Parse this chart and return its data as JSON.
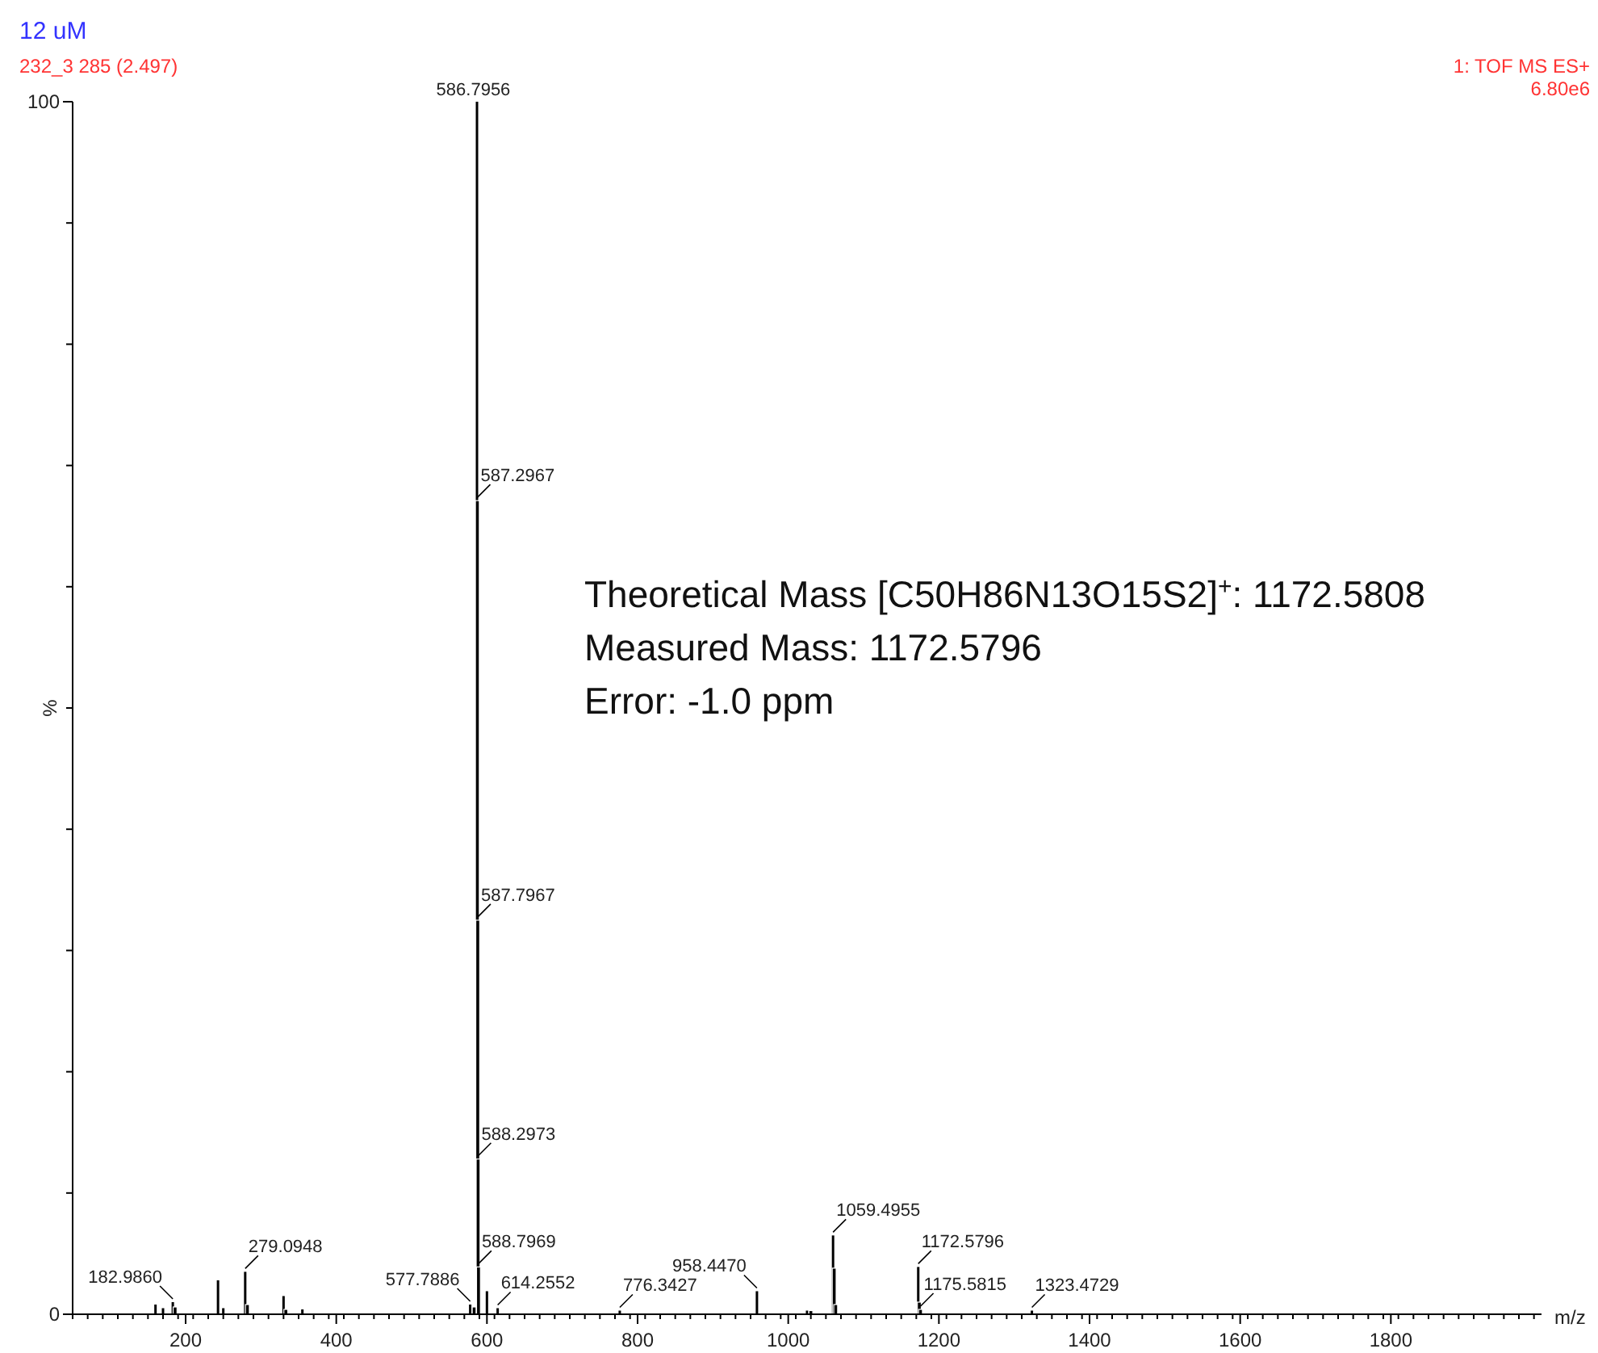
{
  "chart_data": {
    "type": "bar",
    "title": "12 uM",
    "subtitle": "232_3 285 (2.497)",
    "xlabel": "m/z",
    "ylabel": "%",
    "x": [
      160,
      170,
      182.986,
      186,
      243,
      250,
      279.0948,
      282,
      330,
      333,
      355,
      577.7886,
      583,
      586.7956,
      587.2967,
      587.7967,
      588.2973,
      588.7969,
      600,
      614.2552,
      776.3427,
      958.447,
      1025,
      1030,
      1059.4955,
      1061,
      1063,
      1172.5796,
      1174,
      1175.5815,
      1323.4729
    ],
    "values": [
      0.8,
      0.5,
      1.0,
      0.6,
      2.8,
      0.5,
      3.5,
      0.8,
      1.5,
      0.4,
      0.4,
      0.8,
      0.6,
      100,
      67.1,
      32.5,
      12.8,
      3.9,
      1.9,
      0.5,
      0.3,
      1.9,
      0.3,
      0.3,
      6.5,
      3.8,
      0.8,
      3.9,
      1.0,
      0.4,
      0.3
    ],
    "color": "#000000",
    "xlim": [
      50,
      2000
    ],
    "xticks": [
      200,
      400,
      600,
      800,
      1000,
      1200,
      1400,
      1600,
      1800
    ],
    "ylim": [
      0,
      100
    ],
    "yticks": [
      0,
      {
        "value": 10,
        "label": null
      },
      {
        "value": 20,
        "label": null
      },
      {
        "value": 30,
        "label": null
      },
      {
        "value": 40,
        "label": null
      },
      {
        "value": 50,
        "label": null
      },
      {
        "value": 60,
        "label": null
      },
      {
        "value": 70,
        "label": null
      },
      {
        "value": 80,
        "label": null
      },
      {
        "value": 90,
        "label": null
      },
      100
    ],
    "annotations": [
      "1: TOF MS ES+",
      "6.80e6",
      "Theoretical Mass [C50H86N13O15S2]$^{+}$: 1172.5808",
      "Measured Mass: 1172.5796",
      "Error: -1.0 ppm",
      {
        "text": "586.7956",
        "x": 586.7956,
        "y": 100
      },
      {
        "text": "587.2967",
        "x": 587.2967,
        "y": 67.1
      },
      {
        "text": "587.7967",
        "x": 587.7967,
        "y": 32.5
      },
      {
        "text": "588.2973",
        "x": 588.2973,
        "y": 12.8
      },
      {
        "text": "588.7969",
        "x": 588.7969,
        "y": 3.9
      },
      {
        "text": "182.9860",
        "x": 182.986,
        "y": 1.0
      },
      {
        "text": "279.0948",
        "x": 279.0948,
        "y": 3.5
      },
      {
        "text": "577.7886",
        "x": 577.7886,
        "y": 0.8
      },
      {
        "text": "614.2552",
        "x": 614.2552,
        "y": 0.5
      },
      {
        "text": "776.3427",
        "x": 776.3427,
        "y": 0.3
      },
      {
        "text": "958.4470",
        "x": 958.447,
        "y": 1.9
      },
      {
        "text": "1059.4955",
        "x": 1059.4955,
        "y": 6.5
      },
      {
        "text": "1172.5796",
        "x": 1172.5796,
        "y": 3.9
      },
      {
        "text": "1175.5815",
        "x": 1175.5815,
        "y": 0.4
      },
      {
        "text": "1323.4729",
        "x": 1323.4729,
        "y": 0.3
      }
    ]
  }
}
